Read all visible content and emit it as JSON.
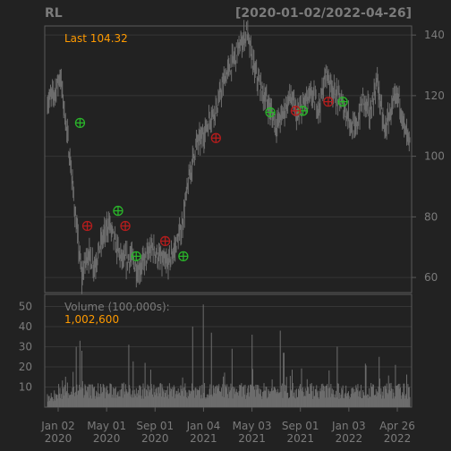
{
  "chart_data": {
    "type": "candlestick",
    "symbol": "RL",
    "date_range": "[2020-01-02/2022-04-26]",
    "last_label": "Last 104.32",
    "last_value": 104.32,
    "price_axis": {
      "ylim": [
        55,
        143
      ],
      "ticks": [
        60,
        80,
        100,
        120,
        140
      ]
    },
    "volume_axis": {
      "label": "Volume (100,000s):",
      "last_value": "1,002,600",
      "ylim": [
        0,
        56
      ],
      "ticks": [
        10,
        20,
        30,
        40,
        50
      ]
    },
    "x_ticks": [
      {
        "line1": "Jan 02",
        "line2": "2020"
      },
      {
        "line1": "May 01",
        "line2": "2020"
      },
      {
        "line1": "Sep 01",
        "line2": "2020"
      },
      {
        "line1": "Jan 04",
        "line2": "2021"
      },
      {
        "line1": "May 03",
        "line2": "2021"
      },
      {
        "line1": "Sep 01",
        "line2": "2021"
      },
      {
        "line1": "Jan 03",
        "line2": "2022"
      },
      {
        "line1": "Apr 26",
        "line2": "2022"
      }
    ],
    "price_path": [
      [
        0,
        118
      ],
      [
        0.02,
        121
      ],
      [
        0.035,
        127
      ],
      [
        0.05,
        112
      ],
      [
        0.065,
        96
      ],
      [
        0.08,
        77
      ],
      [
        0.095,
        60
      ],
      [
        0.11,
        68
      ],
      [
        0.13,
        64
      ],
      [
        0.15,
        72
      ],
      [
        0.17,
        78
      ],
      [
        0.19,
        70
      ],
      [
        0.21,
        65
      ],
      [
        0.23,
        67
      ],
      [
        0.25,
        62
      ],
      [
        0.27,
        66
      ],
      [
        0.29,
        70
      ],
      [
        0.31,
        66
      ],
      [
        0.33,
        64
      ],
      [
        0.35,
        69
      ],
      [
        0.37,
        76
      ],
      [
        0.39,
        92
      ],
      [
        0.41,
        104
      ],
      [
        0.43,
        107
      ],
      [
        0.45,
        113
      ],
      [
        0.47,
        117
      ],
      [
        0.49,
        126
      ],
      [
        0.51,
        131
      ],
      [
        0.53,
        136
      ],
      [
        0.55,
        141
      ],
      [
        0.57,
        129
      ],
      [
        0.59,
        122
      ],
      [
        0.61,
        117
      ],
      [
        0.63,
        110
      ],
      [
        0.65,
        114
      ],
      [
        0.67,
        120
      ],
      [
        0.69,
        113
      ],
      [
        0.71,
        118
      ],
      [
        0.73,
        120
      ],
      [
        0.75,
        116
      ],
      [
        0.77,
        128
      ],
      [
        0.79,
        121
      ],
      [
        0.81,
        118
      ],
      [
        0.83,
        113
      ],
      [
        0.85,
        108
      ],
      [
        0.87,
        119
      ],
      [
        0.89,
        114
      ],
      [
        0.91,
        125
      ],
      [
        0.93,
        108
      ],
      [
        0.95,
        116
      ],
      [
        0.97,
        120
      ],
      [
        0.985,
        109
      ],
      [
        1.0,
        104
      ]
    ],
    "buy_signals": [
      [
        0.09,
        111
      ],
      [
        0.195,
        82
      ],
      [
        0.245,
        67
      ],
      [
        0.375,
        67
      ],
      [
        0.615,
        114.5
      ],
      [
        0.705,
        115
      ],
      [
        0.815,
        118
      ]
    ],
    "sell_signals": [
      [
        0.11,
        77
      ],
      [
        0.215,
        77
      ],
      [
        0.325,
        72
      ],
      [
        0.465,
        106
      ],
      [
        0.685,
        115
      ],
      [
        0.775,
        118
      ]
    ],
    "volume_spikes": [
      [
        0.08,
        30
      ],
      [
        0.09,
        33
      ],
      [
        0.095,
        28
      ],
      [
        0.225,
        31
      ],
      [
        0.27,
        22
      ],
      [
        0.4,
        40
      ],
      [
        0.43,
        51
      ],
      [
        0.452,
        37
      ],
      [
        0.51,
        29
      ],
      [
        0.565,
        36
      ],
      [
        0.642,
        38
      ],
      [
        0.652,
        27
      ],
      [
        0.8,
        30
      ],
      [
        0.915,
        25
      ],
      [
        0.96,
        21
      ]
    ],
    "colors": {
      "background": "#222222",
      "grid": "#363636",
      "frame": "#5a5a5a",
      "candles": "#6d6d6d",
      "buy": "#2ab52a",
      "sell": "#b51d1d",
      "last": "#ff9a00",
      "text": "#7b7b7b"
    }
  }
}
